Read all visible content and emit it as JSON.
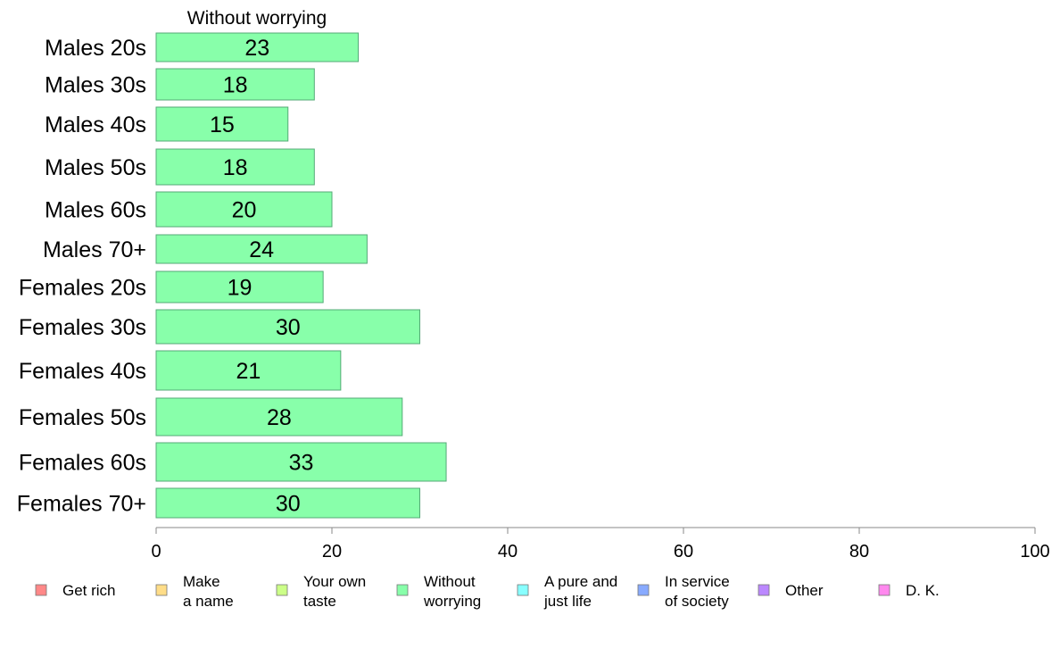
{
  "chart_data": {
    "type": "bar",
    "orientation": "horizontal",
    "title": "Without worrying",
    "categories": [
      "Males 20s",
      "Males 30s",
      "Males 40s",
      "Males 50s",
      "Males 60s",
      "Males 70+",
      "Females 20s",
      "Females 30s",
      "Females 40s",
      "Females 50s",
      "Females 60s",
      "Females 70+"
    ],
    "series": [
      {
        "name": "Without worrying",
        "color": "#88ffaa",
        "values": [
          23,
          18,
          15,
          18,
          20,
          24,
          19,
          30,
          21,
          28,
          33,
          30
        ]
      }
    ],
    "xlim": [
      0,
      100
    ],
    "xticks": [
      0,
      20,
      40,
      60,
      80,
      100
    ],
    "grid": false,
    "legend": {
      "position": "bottom",
      "items": [
        {
          "lines": [
            "Get rich"
          ],
          "color": "#ff8888"
        },
        {
          "lines": [
            "Make",
            "a name"
          ],
          "color": "#ffdd88"
        },
        {
          "lines": [
            "Your own",
            "taste"
          ],
          "color": "#ccff88"
        },
        {
          "lines": [
            "Without",
            "worrying"
          ],
          "color": "#88ffaa"
        },
        {
          "lines": [
            "A pure and",
            "just life"
          ],
          "color": "#88ffff"
        },
        {
          "lines": [
            "In service",
            "of society"
          ],
          "color": "#88aaff"
        },
        {
          "lines": [
            "Other"
          ],
          "color": "#bb88ff"
        },
        {
          "lines": [
            "D. K."
          ],
          "color": "#ff88ee"
        }
      ]
    }
  }
}
